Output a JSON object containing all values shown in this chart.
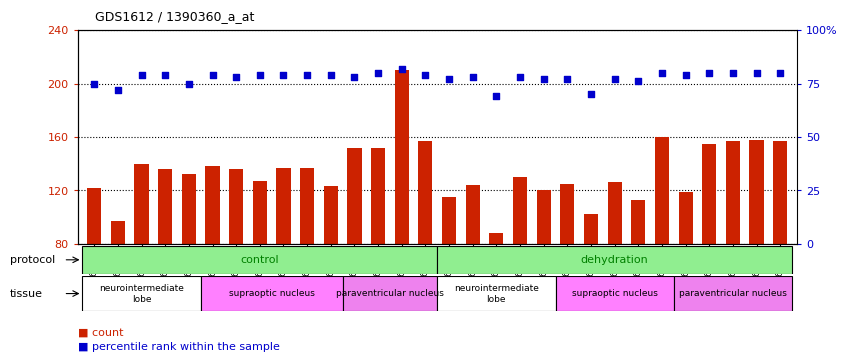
{
  "title": "GDS1612 / 1390360_a_at",
  "samples": [
    "GSM69787",
    "GSM69788",
    "GSM69789",
    "GSM69790",
    "GSM69791",
    "GSM69461",
    "GSM69462",
    "GSM69463",
    "GSM69464",
    "GSM69465",
    "GSM69475",
    "GSM69476",
    "GSM69477",
    "GSM69478",
    "GSM69479",
    "GSM69782",
    "GSM69783",
    "GSM69784",
    "GSM69785",
    "GSM69786",
    "GSM69268",
    "GSM69457",
    "GSM69458",
    "GSM69459",
    "GSM69460",
    "GSM69470",
    "GSM69471",
    "GSM69472",
    "GSM69473",
    "GSM69474"
  ],
  "counts": [
    122,
    97,
    140,
    136,
    132,
    138,
    136,
    127,
    137,
    137,
    123,
    152,
    152,
    210,
    157,
    115,
    124,
    88,
    130,
    120,
    125,
    102,
    126,
    113,
    160,
    119,
    155,
    157,
    158,
    157
  ],
  "percentiles": [
    75,
    72,
    79,
    79,
    75,
    79,
    78,
    79,
    79,
    79,
    79,
    78,
    80,
    82,
    79,
    77,
    78,
    69,
    78,
    77,
    77,
    70,
    77,
    76,
    80,
    79,
    80,
    80,
    80,
    80
  ],
  "ylim_left": [
    80,
    240
  ],
  "ylim_right": [
    0,
    100
  ],
  "yticks_left": [
    80,
    120,
    160,
    200,
    240
  ],
  "yticks_right": [
    0,
    25,
    50,
    75,
    100
  ],
  "bar_color": "#cc2200",
  "scatter_color": "#0000cc",
  "protocol_groups": [
    {
      "label": "control",
      "start": 0,
      "end": 14,
      "color": "#90ee90"
    },
    {
      "label": "dehydration",
      "start": 15,
      "end": 29,
      "color": "#90ee90"
    }
  ],
  "tissue_groups": [
    {
      "label": "neurointermediate\nlobe",
      "start": 0,
      "end": 4,
      "color": "#ffffff"
    },
    {
      "label": "supraoptic nucleus",
      "start": 5,
      "end": 10,
      "color": "#ff80ff"
    },
    {
      "label": "paraventricular nucleus",
      "start": 11,
      "end": 14,
      "color": "#ee82ee"
    },
    {
      "label": "neurointermediate\nlobe",
      "start": 15,
      "end": 19,
      "color": "#ffffff"
    },
    {
      "label": "supraoptic nucleus",
      "start": 20,
      "end": 24,
      "color": "#ff80ff"
    },
    {
      "label": "paraventricular nucleus",
      "start": 25,
      "end": 29,
      "color": "#ee82ee"
    }
  ]
}
